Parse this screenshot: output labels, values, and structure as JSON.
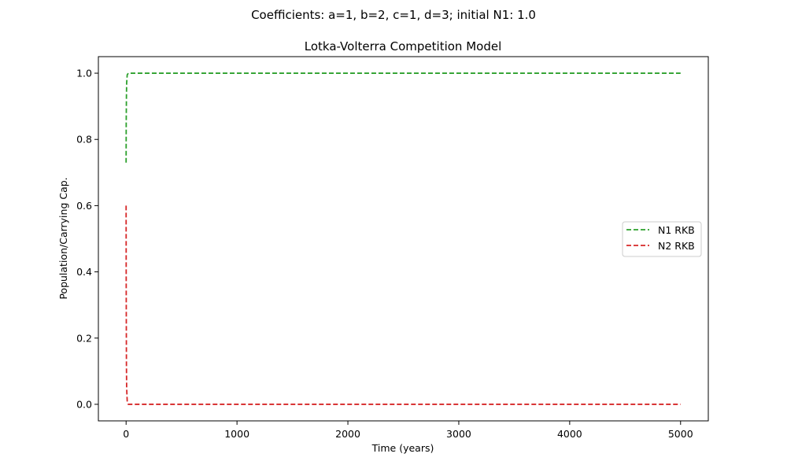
{
  "figure": {
    "suptitle": "Coefficients: a=1, b=2, c=1, d=3; initial N1: 1.0"
  },
  "chart_data": {
    "type": "line",
    "title": "Lotka-Volterra Competition Model",
    "xlabel": "Time (years)",
    "ylabel": "Population/Carrying Cap.",
    "xlim": [
      -250,
      5250
    ],
    "ylim": [
      -0.05,
      1.05
    ],
    "xticks": [
      0,
      1000,
      2000,
      3000,
      4000,
      5000
    ],
    "yticks": [
      0.0,
      0.2,
      0.4,
      0.6,
      0.8,
      1.0
    ],
    "xtick_labels": [
      "0",
      "1000",
      "2000",
      "3000",
      "4000",
      "5000"
    ],
    "ytick_labels": [
      "0.0",
      "0.2",
      "0.4",
      "0.6",
      "0.8",
      "1.0"
    ],
    "grid": false,
    "legend_position": "center-right",
    "series": [
      {
        "name": "N1 RKB",
        "color": "#2ca02c",
        "line_style": "dashed",
        "x": [
          0,
          1,
          3,
          5,
          10,
          20,
          100,
          1000,
          2000,
          3000,
          4000,
          5000
        ],
        "y": [
          0.73,
          0.85,
          0.93,
          0.97,
          0.995,
          1.0,
          1.0,
          1.0,
          1.0,
          1.0,
          1.0,
          1.0
        ]
      },
      {
        "name": "N2 RKB",
        "color": "#d62728",
        "line_style": "dashed",
        "x": [
          0,
          1,
          3,
          5,
          10,
          20,
          100,
          1000,
          2000,
          3000,
          4000,
          5000
        ],
        "y": [
          0.6,
          0.35,
          0.12,
          0.05,
          0.01,
          0.0,
          0.0,
          0.0,
          0.0,
          0.0,
          0.0,
          0.0
        ]
      }
    ]
  }
}
